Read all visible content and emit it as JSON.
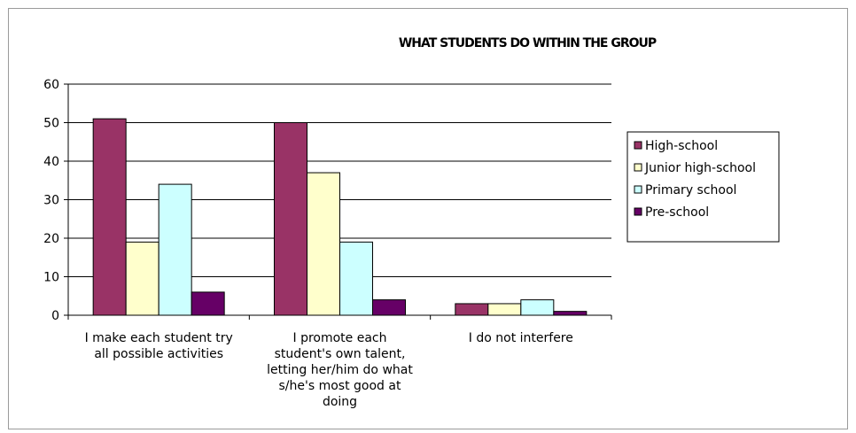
{
  "chart_data": {
    "type": "bar",
    "title": "WHAT STUDENTS DO WITHIN THE GROUP",
    "xlabel": "",
    "ylabel": "",
    "ylim": [
      0,
      60
    ],
    "yticks": [
      0,
      10,
      20,
      30,
      40,
      50,
      60
    ],
    "grid": true,
    "legend_position": "right",
    "categories": [
      [
        "I make each student try",
        "all possible activities"
      ],
      [
        "I promote each",
        "student's own talent,",
        "letting her/him do what",
        "s/he's most good at",
        "doing"
      ],
      [
        "I do not interfere"
      ]
    ],
    "series": [
      {
        "name": "High-school",
        "color": "#993366",
        "values": [
          51,
          50,
          3
        ]
      },
      {
        "name": "Junior high-school",
        "color": "#FFFFCC",
        "values": [
          19,
          37,
          3
        ]
      },
      {
        "name": "Primary school",
        "color": "#CCFFFF",
        "values": [
          34,
          19,
          4
        ]
      },
      {
        "name": "Pre-school",
        "color": "#660066",
        "values": [
          6,
          4,
          1
        ]
      }
    ]
  }
}
